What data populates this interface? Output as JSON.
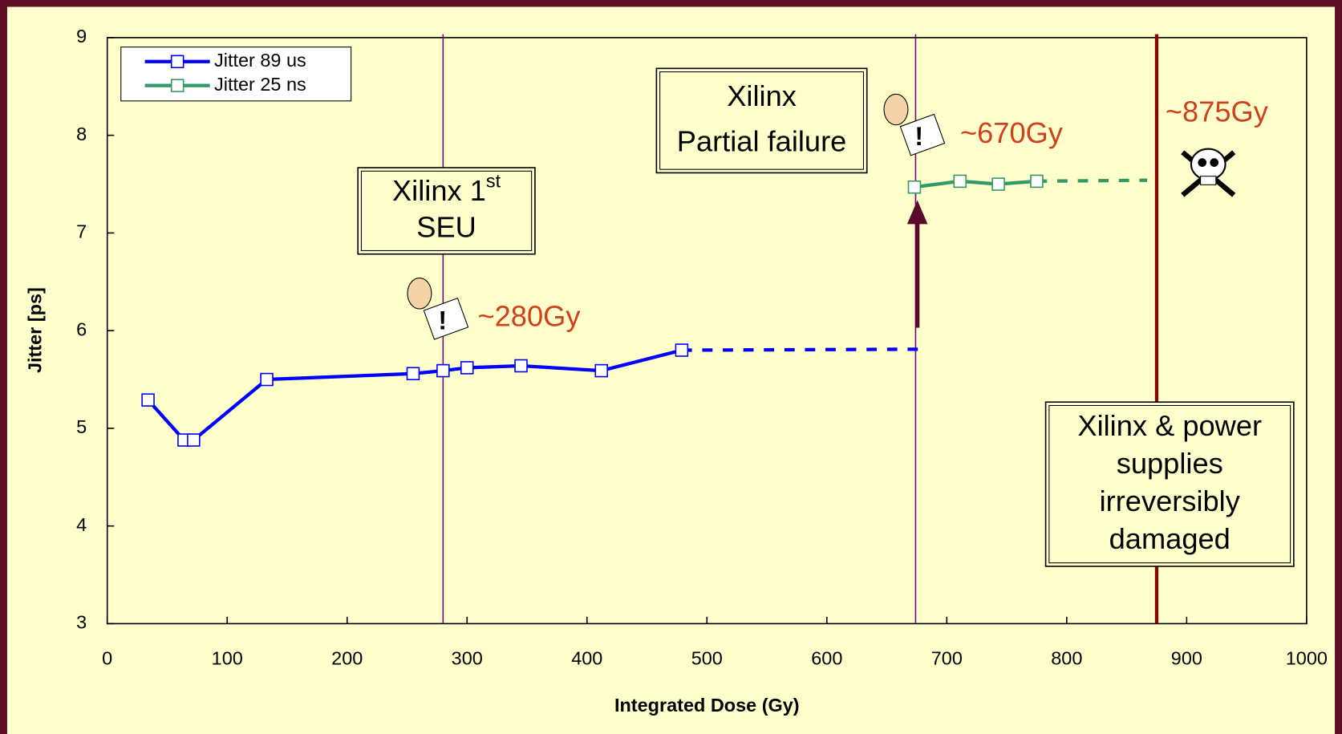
{
  "chart_data": {
    "type": "line",
    "xlabel": "Integrated Dose (Gy)",
    "ylabel": "Jitter [ps]",
    "xlim": [
      0,
      1000
    ],
    "xticks": [
      0,
      100,
      200,
      300,
      400,
      500,
      600,
      700,
      800,
      900,
      1000
    ],
    "ylim": [
      3,
      9
    ],
    "yticks": [
      3,
      4,
      5,
      6,
      7,
      8,
      9
    ],
    "legend": "top-left",
    "series": [
      {
        "name": "Jitter 89 us",
        "color": "#0000ff",
        "x": [
          34,
          64,
          72,
          133,
          255,
          280,
          300,
          345,
          412,
          479
        ],
        "values": [
          5.29,
          4.88,
          4.88,
          5.5,
          5.56,
          5.59,
          5.62,
          5.64,
          5.59,
          5.8
        ],
        "projection": {
          "x": [
            479,
            681
          ],
          "values": [
            5.8,
            5.81
          ]
        }
      },
      {
        "name": "Jitter 25 ns",
        "color": "#339966",
        "x": [
          673,
          711,
          743,
          775
        ],
        "values": [
          7.47,
          7.53,
          7.5,
          7.53
        ],
        "projection": {
          "x": [
            775,
            867
          ],
          "values": [
            7.53,
            7.54
          ]
        }
      }
    ],
    "markers": [
      {
        "x": 280,
        "color": "#800080",
        "width": 1.5,
        "label": "~280Gy",
        "box": {
          "lines": [
            "Xilinx 1",
            "SEU"
          ],
          "superscript": "st"
        }
      },
      {
        "x": 674,
        "color": "#800080",
        "width": 1.5,
        "label": "~670Gy",
        "box": {
          "lines": [
            "Xilinx",
            "Partial failure"
          ]
        }
      },
      {
        "x": 875,
        "color": "#8b0000",
        "width": 4,
        "label": "~875Gy",
        "box": {
          "lines": [
            "Xilinx & power",
            "supplies",
            "irreversibly",
            "damaged"
          ]
        }
      }
    ]
  }
}
